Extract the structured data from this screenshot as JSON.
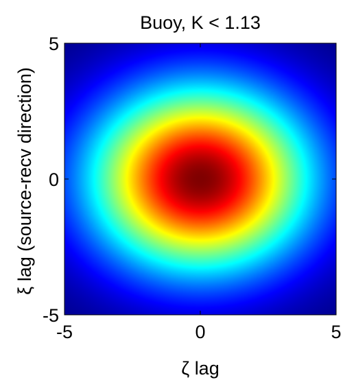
{
  "chart_data": {
    "type": "heatmap",
    "title": "Buoy, K < 1.13",
    "xlabel": "ζ lag",
    "ylabel": "ξ lag (source-recv direction)",
    "xlim": [
      -5,
      5
    ],
    "ylim": [
      -5,
      5
    ],
    "xticks": [
      -5,
      0,
      5
    ],
    "yticks": [
      -5,
      0,
      5
    ],
    "xtick_labels": [
      "-5",
      "0",
      "5"
    ],
    "ytick_labels": [
      "-5",
      "0",
      "5"
    ],
    "colormap": "jet",
    "grid": false,
    "colorbar": false,
    "surface": {
      "shape": "gaussian",
      "center": [
        0,
        0
      ],
      "peak": 1.0,
      "value_at_x_lag_5": 0.2,
      "value_at_y_lag_5": 0.1
    }
  }
}
